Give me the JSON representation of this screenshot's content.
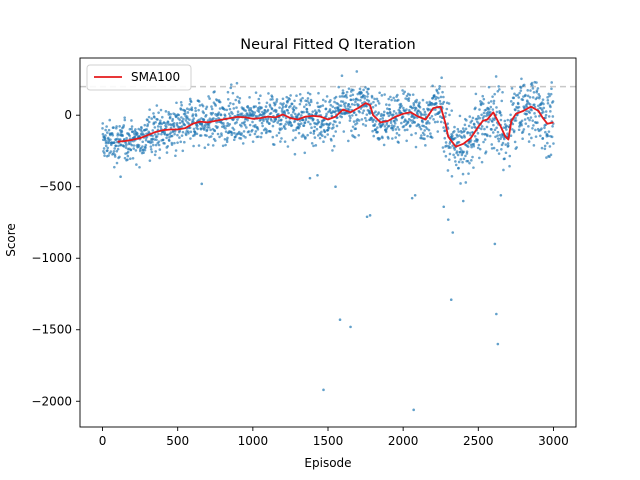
{
  "chart_data": {
    "type": "scatter",
    "title": "Neural Fitted Q Iteration",
    "xlabel": "Episode",
    "ylabel": "Score",
    "xlim": [
      -150,
      3150
    ],
    "ylim": [
      -2180,
      400
    ],
    "xticks": [
      0,
      500,
      1000,
      1500,
      2000,
      2500,
      3000
    ],
    "xtick_labels": [
      "0",
      "500",
      "1000",
      "1500",
      "2000",
      "2500",
      "3000"
    ],
    "yticks": [
      0,
      -500,
      -1000,
      -1500,
      -2000
    ],
    "ytick_labels": [
      "0",
      "−500",
      "−1000",
      "−1500",
      "−2000"
    ],
    "grid": false,
    "legend_position": "upper-left",
    "reference_line": {
      "y": 200,
      "style": "dashed",
      "color": "#c8c8c8"
    },
    "series": [
      {
        "name": "SMA100",
        "kind": "line",
        "color": "#e41a1c",
        "points": [
          [
            100,
            -185
          ],
          [
            150,
            -180
          ],
          [
            200,
            -172
          ],
          [
            250,
            -160
          ],
          [
            300,
            -140
          ],
          [
            350,
            -118
          ],
          [
            400,
            -105
          ],
          [
            450,
            -100
          ],
          [
            500,
            -100
          ],
          [
            550,
            -90
          ],
          [
            600,
            -60
          ],
          [
            650,
            -45
          ],
          [
            700,
            -50
          ],
          [
            750,
            -40
          ],
          [
            800,
            -30
          ],
          [
            850,
            -20
          ],
          [
            900,
            -12
          ],
          [
            950,
            -15
          ],
          [
            1000,
            -25
          ],
          [
            1050,
            -20
          ],
          [
            1100,
            -10
          ],
          [
            1150,
            -15
          ],
          [
            1200,
            5
          ],
          [
            1250,
            -20
          ],
          [
            1300,
            -30
          ],
          [
            1350,
            -10
          ],
          [
            1400,
            -5
          ],
          [
            1450,
            -10
          ],
          [
            1500,
            -30
          ],
          [
            1550,
            -10
          ],
          [
            1600,
            40
          ],
          [
            1650,
            20
          ],
          [
            1700,
            50
          ],
          [
            1750,
            85
          ],
          [
            1780,
            70
          ],
          [
            1800,
            0
          ],
          [
            1850,
            -50
          ],
          [
            1900,
            -40
          ],
          [
            1950,
            -10
          ],
          [
            2000,
            10
          ],
          [
            2050,
            20
          ],
          [
            2100,
            -10
          ],
          [
            2150,
            -30
          ],
          [
            2200,
            50
          ],
          [
            2250,
            60
          ],
          [
            2280,
            -50
          ],
          [
            2300,
            -150
          ],
          [
            2350,
            -220
          ],
          [
            2400,
            -200
          ],
          [
            2450,
            -160
          ],
          [
            2500,
            -80
          ],
          [
            2530,
            -40
          ],
          [
            2560,
            -30
          ],
          [
            2600,
            20
          ],
          [
            2650,
            -80
          ],
          [
            2680,
            -150
          ],
          [
            2700,
            -170
          ],
          [
            2720,
            -40
          ],
          [
            2750,
            10
          ],
          [
            2800,
            30
          ],
          [
            2850,
            60
          ],
          [
            2900,
            30
          ],
          [
            2930,
            -20
          ],
          [
            2960,
            -60
          ],
          [
            3000,
            -50
          ]
        ]
      },
      {
        "name": "",
        "kind": "scatter",
        "color": "#1f77b4",
        "note_outliers": [
          [
            1470,
            -1920
          ],
          [
            2070,
            -2060
          ],
          [
            1580,
            -1430
          ],
          [
            1650,
            -1480
          ],
          [
            2320,
            -1290
          ],
          [
            2620,
            -1390
          ],
          [
            2630,
            -1600
          ],
          [
            2610,
            -900
          ],
          [
            1780,
            -700
          ],
          [
            1760,
            -710
          ],
          [
            2330,
            -820
          ],
          [
            2080,
            -560
          ],
          [
            2060,
            -580
          ],
          [
            2400,
            -600
          ],
          [
            2300,
            -730
          ],
          [
            2650,
            -560
          ],
          [
            660,
            -480
          ],
          [
            120,
            -430
          ],
          [
            1380,
            -440
          ],
          [
            1430,
            -420
          ],
          [
            1550,
            -500
          ],
          [
            2270,
            -640
          ]
        ]
      }
    ]
  }
}
